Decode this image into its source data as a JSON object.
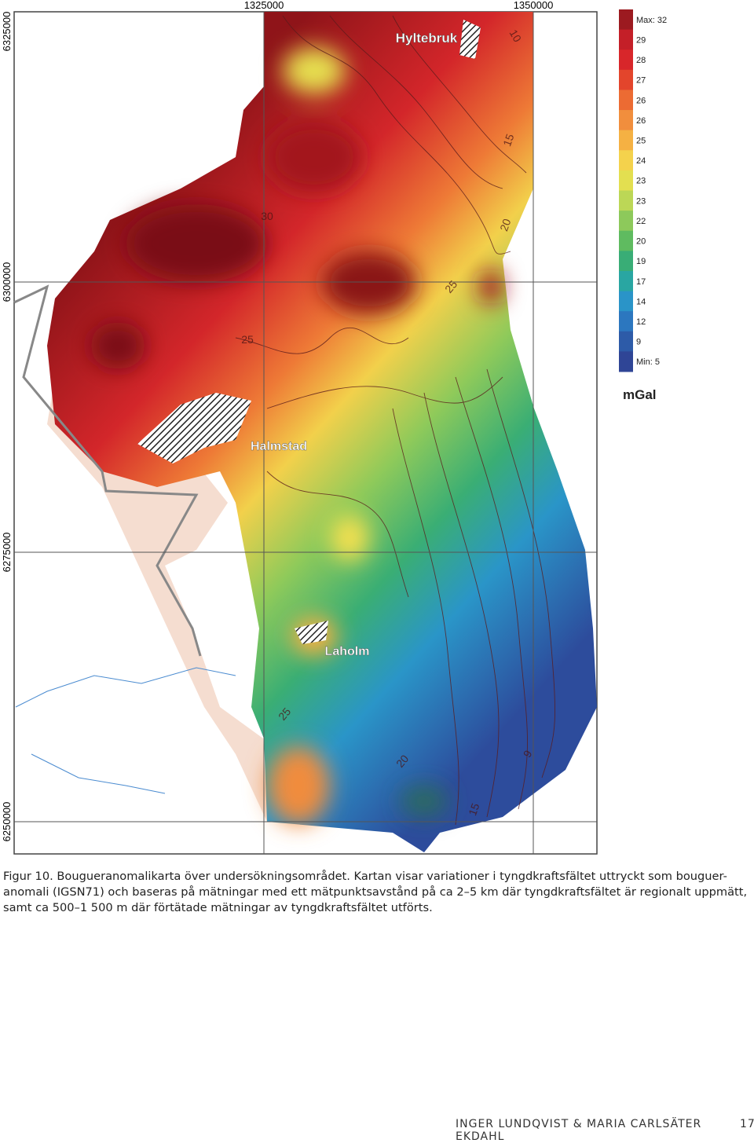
{
  "map": {
    "x_labels": [
      "1325000",
      "1350000"
    ],
    "y_labels": [
      "6325000",
      "6300000",
      "6275000",
      "6250000"
    ],
    "places": [
      "Hyltebruk",
      "Halmstad",
      "Laholm"
    ],
    "contour_labels": [
      "30",
      "25",
      "25",
      "20",
      "15",
      "10",
      "25",
      "20",
      "15",
      "9"
    ]
  },
  "legend": {
    "items": [
      {
        "label": "Max: 32",
        "color": "#9c1a20"
      },
      {
        "label": 29,
        "color": "#c41f28"
      },
      {
        "label": 28,
        "color": "#d8262a"
      },
      {
        "label": 27,
        "color": "#e3452c"
      },
      {
        "label": 26,
        "color": "#ec6b33"
      },
      {
        "label": 26,
        "color": "#f18e3d"
      },
      {
        "label": 25,
        "color": "#f5b143"
      },
      {
        "label": 24,
        "color": "#f4d24c"
      },
      {
        "label": 23,
        "color": "#e3df50"
      },
      {
        "label": 23,
        "color": "#bcd756"
      },
      {
        "label": 22,
        "color": "#8dc95b"
      },
      {
        "label": 20,
        "color": "#5fbb60"
      },
      {
        "label": 19,
        "color": "#39ad76"
      },
      {
        "label": 17,
        "color": "#29a6a2"
      },
      {
        "label": 14,
        "color": "#2a94c8"
      },
      {
        "label": 12,
        "color": "#2c77bf"
      },
      {
        "label": 9,
        "color": "#2d5ba8"
      },
      {
        "label": "Min: 5",
        "color": "#2f4596"
      }
    ],
    "unit": "mGal"
  },
  "caption": {
    "lines": [
      "Figur 10. Bougueranomalikarta över undersökningsområdet. Kartan visar variationer i tyngdkraftsfältet uttryckt som bouguer-",
      "anomali (IGSN71) och baseras på mätningar med ett mätpunktsavstånd på ca 2–5 km där tyngdkraftsfältet är regionalt uppmätt,",
      "samt ca 500–1 500 m där förtätade mätningar av tyngdkraftsfältet utförts."
    ]
  },
  "footer": {
    "authors": "INGER LUNDQVIST & MARIA CARLSÄTER EKDAHL",
    "page_number": "17"
  }
}
